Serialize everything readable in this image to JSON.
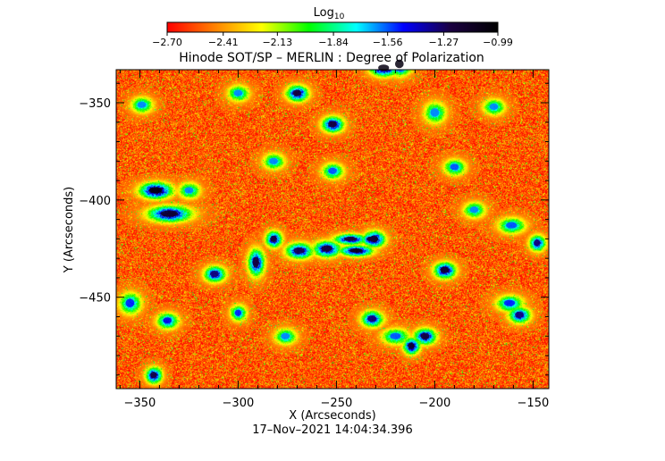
{
  "chart_data": {
    "type": "heatmap",
    "title": "Hinode SOT/SP – MERLIN : Degree of Polarization",
    "xlabel": "X (Arcseconds)",
    "ylabel": "Y (Arcseconds)",
    "timestamp": "17–Nov–2021 14:04:34.396",
    "xlim": [
      -362,
      -142
    ],
    "ylim": [
      -497,
      -333
    ],
    "x_ticks": [
      -350,
      -300,
      -250,
      -200,
      -150
    ],
    "y_ticks": [
      -350,
      -400,
      -450
    ],
    "x_tick_labels": [
      "−350",
      "−300",
      "−250",
      "−200",
      "−150"
    ],
    "y_tick_labels": [
      "−350",
      "−400",
      "−450"
    ],
    "colorbar": {
      "title_base": "Log",
      "title_sub": "10",
      "range": [
        -2.7,
        -0.99
      ],
      "tick_values": [
        -2.7,
        -2.41,
        -2.13,
        -1.84,
        -1.56,
        -1.27,
        -0.99
      ],
      "tick_labels": [
        "−2.70",
        "−2.41",
        "−2.13",
        "−1.84",
        "−1.56",
        "−1.27",
        "−0.99"
      ],
      "colormap": [
        "#ff0000",
        "#ff8000",
        "#ffff00",
        "#00ff00",
        "#00ffff",
        "#0000ff",
        "#1a0040",
        "#000000"
      ]
    },
    "background_level": -2.55,
    "grid": false,
    "features": [
      {
        "x": -342,
        "y": -395,
        "rx": 6,
        "ry": 3,
        "peak": -1.05
      },
      {
        "x": -335,
        "y": -407,
        "rx": 8,
        "ry": 3,
        "peak": -1.15
      },
      {
        "x": -270,
        "y": -345,
        "rx": 4,
        "ry": 3,
        "peak": -1.2
      },
      {
        "x": -226,
        "y": -332,
        "rx": 5,
        "ry": 3,
        "peak": -1.05
      },
      {
        "x": -218,
        "y": -330,
        "rx": 4,
        "ry": 4,
        "peak": -1.05
      },
      {
        "x": -252,
        "y": -361,
        "rx": 4,
        "ry": 3,
        "peak": -1.2
      },
      {
        "x": -240,
        "y": -426,
        "rx": 6,
        "ry": 2,
        "peak": -1.1
      },
      {
        "x": -231,
        "y": -420,
        "rx": 4,
        "ry": 3,
        "peak": -1.15
      },
      {
        "x": -195,
        "y": -436,
        "rx": 4,
        "ry": 3,
        "peak": -1.15
      },
      {
        "x": -233,
        "y": -420,
        "rx": 3,
        "ry": 2,
        "peak": -1.2
      },
      {
        "x": -282,
        "y": -420,
        "rx": 3,
        "ry": 3,
        "peak": -1.2
      },
      {
        "x": -291,
        "y": -432,
        "rx": 3,
        "ry": 5,
        "peak": -1.2
      },
      {
        "x": -312,
        "y": -438,
        "rx": 4,
        "ry": 3,
        "peak": -1.3
      },
      {
        "x": -255,
        "y": -425,
        "rx": 5,
        "ry": 3,
        "peak": -1.2
      },
      {
        "x": -243,
        "y": -420,
        "rx": 6,
        "ry": 2,
        "peak": -1.2
      },
      {
        "x": -269,
        "y": -426,
        "rx": 5,
        "ry": 3,
        "peak": -1.25
      },
      {
        "x": -232,
        "y": -461,
        "rx": 4,
        "ry": 3,
        "peak": -1.3
      },
      {
        "x": -212,
        "y": -475,
        "rx": 3,
        "ry": 3,
        "peak": -1.15
      },
      {
        "x": -205,
        "y": -470,
        "rx": 4,
        "ry": 3,
        "peak": -1.2
      },
      {
        "x": -157,
        "y": -459,
        "rx": 4,
        "ry": 3,
        "peak": -1.3
      },
      {
        "x": -148,
        "y": -422,
        "rx": 3,
        "ry": 3,
        "peak": -1.3
      },
      {
        "x": -343,
        "y": -490,
        "rx": 3,
        "ry": 3,
        "peak": -1.2
      },
      {
        "x": -336,
        "y": -462,
        "rx": 4,
        "ry": 3,
        "peak": -1.45
      },
      {
        "x": -355,
        "y": -453,
        "rx": 4,
        "ry": 4,
        "peak": -1.5
      },
      {
        "x": -300,
        "y": -458,
        "rx": 3,
        "ry": 3,
        "peak": -1.5
      },
      {
        "x": -162,
        "y": -453,
        "rx": 5,
        "ry": 3,
        "peak": -1.5
      },
      {
        "x": -190,
        "y": -383,
        "rx": 4,
        "ry": 3,
        "peak": -1.55
      },
      {
        "x": -170,
        "y": -352,
        "rx": 4,
        "ry": 3,
        "peak": -1.6
      },
      {
        "x": -349,
        "y": -351,
        "rx": 4,
        "ry": 3,
        "peak": -1.6
      },
      {
        "x": -300,
        "y": -345,
        "rx": 4,
        "ry": 3,
        "peak": -1.6
      },
      {
        "x": -276,
        "y": -470,
        "rx": 4,
        "ry": 3,
        "peak": -1.6
      },
      {
        "x": -220,
        "y": -470,
        "rx": 5,
        "ry": 3,
        "peak": -1.55
      },
      {
        "x": -325,
        "y": -395,
        "rx": 4,
        "ry": 3,
        "peak": -1.6
      },
      {
        "x": -180,
        "y": -405,
        "rx": 4,
        "ry": 3,
        "peak": -1.6
      },
      {
        "x": -161,
        "y": -413,
        "rx": 5,
        "ry": 3,
        "peak": -1.55
      },
      {
        "x": -200,
        "y": -355,
        "rx": 4,
        "ry": 4,
        "peak": -1.6
      },
      {
        "x": -252,
        "y": -385,
        "rx": 4,
        "ry": 3,
        "peak": -1.55
      },
      {
        "x": -282,
        "y": -380,
        "rx": 4,
        "ry": 3,
        "peak": -1.6
      }
    ]
  }
}
